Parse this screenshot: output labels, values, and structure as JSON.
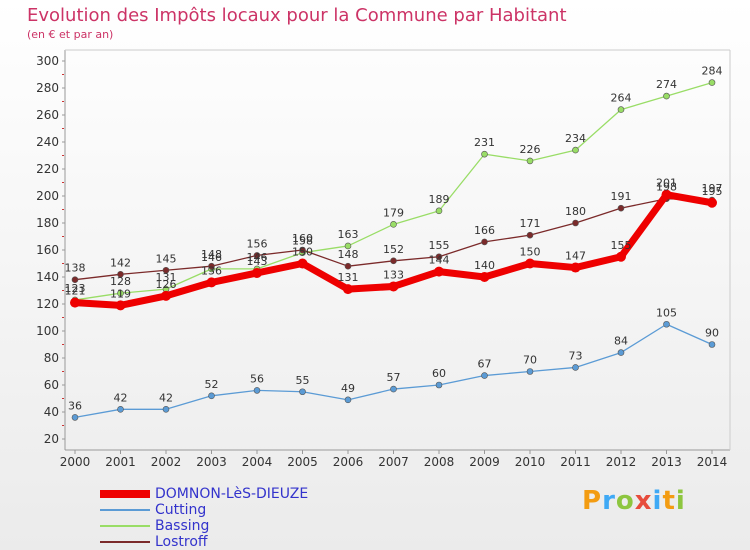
{
  "title": "Evolution des Impôts locaux pour la Commune par Habitant",
  "subtitle": "(en € et par an)",
  "logo_text": "Proxiti",
  "chart_data": {
    "type": "line",
    "title": "Evolution des Impôts locaux pour la Commune par Habitant",
    "subtitle": "(en € et par an)",
    "xlabel": "",
    "ylabel": "",
    "ylim": [
      20,
      300
    ],
    "yticks": [
      20,
      40,
      60,
      80,
      100,
      120,
      140,
      160,
      180,
      200,
      220,
      240,
      260,
      280,
      300
    ],
    "grid": false,
    "legend_position": "bottom-left",
    "categories": [
      "2000",
      "2001",
      "2002",
      "2003",
      "2004",
      "2005",
      "2006",
      "2007",
      "2008",
      "2009",
      "2010",
      "2011",
      "2012",
      "2013",
      "2014"
    ],
    "series": [
      {
        "name": "Cutting",
        "color": "#5b9bd5",
        "values": [
          36,
          42,
          42,
          52,
          56,
          55,
          49,
          57,
          60,
          67,
          70,
          73,
          84,
          105,
          90
        ]
      },
      {
        "name": "Bassing",
        "color": "#99dd66",
        "values": [
          123,
          128,
          131,
          146,
          146,
          158,
          163,
          179,
          189,
          231,
          226,
          234,
          264,
          274,
          284
        ]
      },
      {
        "name": "Lostroff",
        "color": "#7b2a2a",
        "values": [
          138,
          142,
          145,
          148,
          156,
          160,
          148,
          152,
          155,
          166,
          171,
          180,
          191,
          198,
          197
        ]
      },
      {
        "name": "DOMNON-LèS-DIEUZE",
        "color": "#ee0000",
        "values": [
          121,
          119,
          126,
          136,
          143,
          150,
          131,
          133,
          144,
          140,
          150,
          147,
          155,
          201,
          195
        ]
      }
    ],
    "label_texts": [
      [
        "36",
        "42",
        "42",
        "52",
        "56",
        "55",
        "49",
        "57",
        "60",
        "67",
        "70",
        "73",
        "84",
        "105",
        "90"
      ],
      [
        "123",
        "128",
        "131",
        "146",
        "146",
        "158",
        "163",
        "179",
        "189",
        "231",
        "226",
        "234",
        "264",
        "274",
        "284"
      ],
      [
        "138",
        "142",
        "145",
        "148",
        "156",
        "160",
        "148",
        "152",
        "155",
        "166",
        "171",
        "180",
        "191",
        "198",
        "197"
      ],
      [
        "121",
        "119",
        "126",
        "136",
        "143",
        "150",
        "131",
        "133",
        "144",
        "140",
        "150",
        "147",
        "155",
        "201",
        "195"
      ]
    ]
  },
  "legend": [
    {
      "label": "DOMNON-LèS-DIEUZE",
      "color": "#ee0000"
    },
    {
      "label": "Cutting",
      "color": "#5b9bd5"
    },
    {
      "label": "Bassing",
      "color": "#99dd66"
    },
    {
      "label": "Lostroff",
      "color": "#7b2a2a"
    }
  ]
}
